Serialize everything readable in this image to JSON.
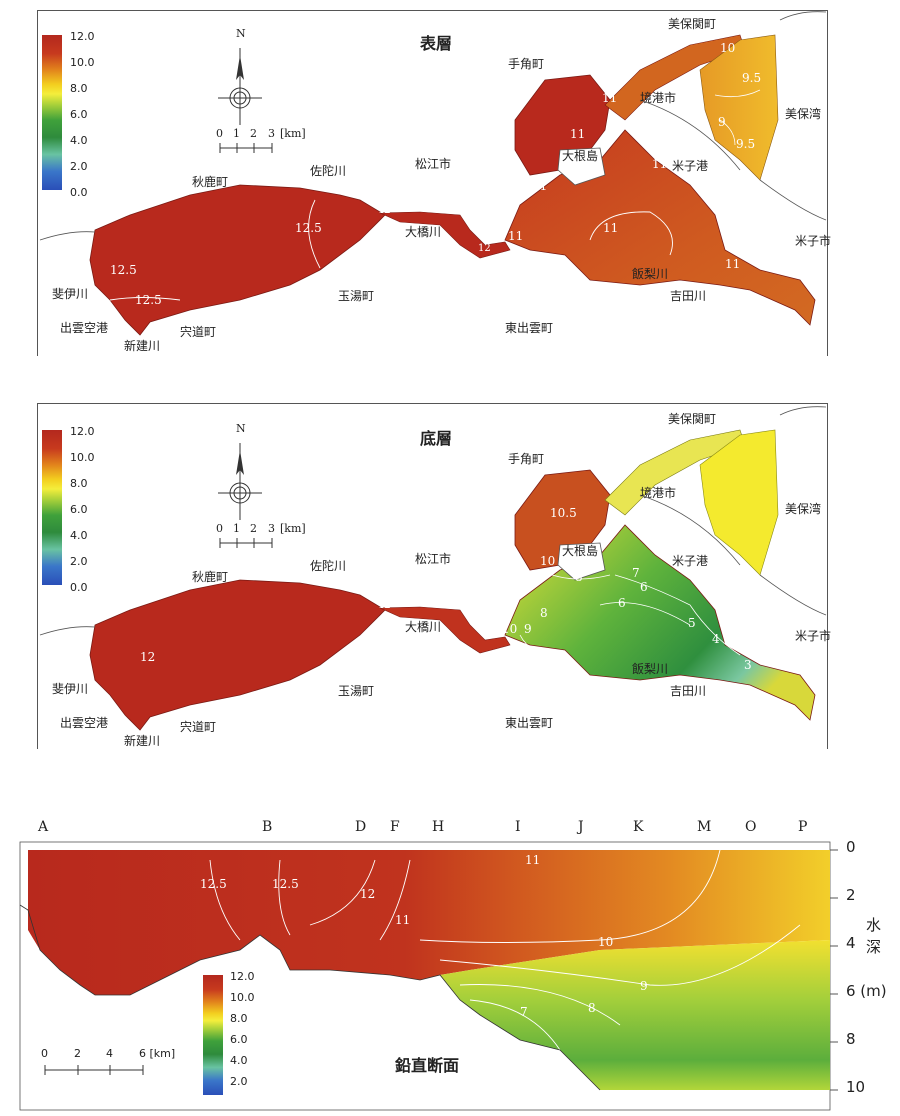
{
  "panels": {
    "surface": {
      "title": "表層",
      "north": "N",
      "scale_ticks": [
        "0",
        "1",
        "2",
        "3",
        "[km]"
      ],
      "legend": [
        "12.0",
        "10.0",
        "8.0",
        "6.0",
        "4.0",
        "2.0",
        "0.0"
      ],
      "places": {
        "akika": "秋鹿町",
        "sada": "佐陀川",
        "matsue": "松江市",
        "tesumi": "手角町",
        "mihoseki": "美保関町",
        "sakaiminato": "境港市",
        "mihowan": "美保湾",
        "daikon": "大根島",
        "yonagoport": "米子港",
        "yonago": "米子市",
        "ohashi": "大橋川",
        "iinashi": "飯梨川",
        "yoshida": "吉田川",
        "tamayu": "玉湯町",
        "hiikawa": "斐伊川",
        "izumoairport": "出雲空港",
        "shinji": "宍道町",
        "shinkawa": "新建川",
        "higashiizumo": "東出雲町"
      },
      "contours": [
        "12.5",
        "12.5",
        "12.5",
        "12",
        "12",
        "11",
        "11",
        "11",
        "11",
        "11",
        "11",
        "11",
        "10",
        "9.5",
        "9",
        "9.5"
      ]
    },
    "bottom": {
      "title": "底層",
      "north": "N",
      "scale_ticks": [
        "0",
        "1",
        "2",
        "3",
        "[km]"
      ],
      "legend": [
        "12.0",
        "10.0",
        "8.0",
        "6.0",
        "4.0",
        "2.0",
        "0.0"
      ],
      "places": {
        "akika": "秋鹿町",
        "sada": "佐陀川",
        "matsue": "松江市",
        "tesumi": "手角町",
        "mihoseki": "美保関町",
        "sakaiminato": "境港市",
        "mihowan": "美保湾",
        "daikon": "大根島",
        "yonagoport": "米子港",
        "yonago": "米子市",
        "ohashi": "大橋川",
        "iinashi": "飯梨川",
        "yoshida": "吉田川",
        "tamayu": "玉湯町",
        "hiikawa": "斐伊川",
        "izumoairport": "出雲空港",
        "shinji": "宍道町",
        "shinkawa": "新建川",
        "higashiizumo": "東出雲町"
      },
      "contours": [
        "12",
        "12",
        "10.5",
        "10",
        "10",
        "9",
        "8",
        "8",
        "7",
        "6",
        "6",
        "5",
        "4",
        "3"
      ]
    },
    "section": {
      "title": "鉛直断面",
      "stations": [
        "A",
        "B",
        "D",
        "F",
        "H",
        "I",
        "J",
        "K",
        "M",
        "O",
        "P"
      ],
      "depth_ticks": [
        "0",
        "2",
        "4",
        "6 (m)",
        "8",
        "10"
      ],
      "depth_label_1": "水",
      "depth_label_2": "深",
      "scale_ticks": [
        "0",
        "2",
        "4",
        "6 [km]"
      ],
      "legend": [
        "12.0",
        "10.0",
        "8.0",
        "6.0",
        "4.0",
        "2.0"
      ],
      "contours": [
        "12.5",
        "12.5",
        "12",
        "11",
        "11",
        "10",
        "9",
        "8",
        "7"
      ]
    }
  }
}
